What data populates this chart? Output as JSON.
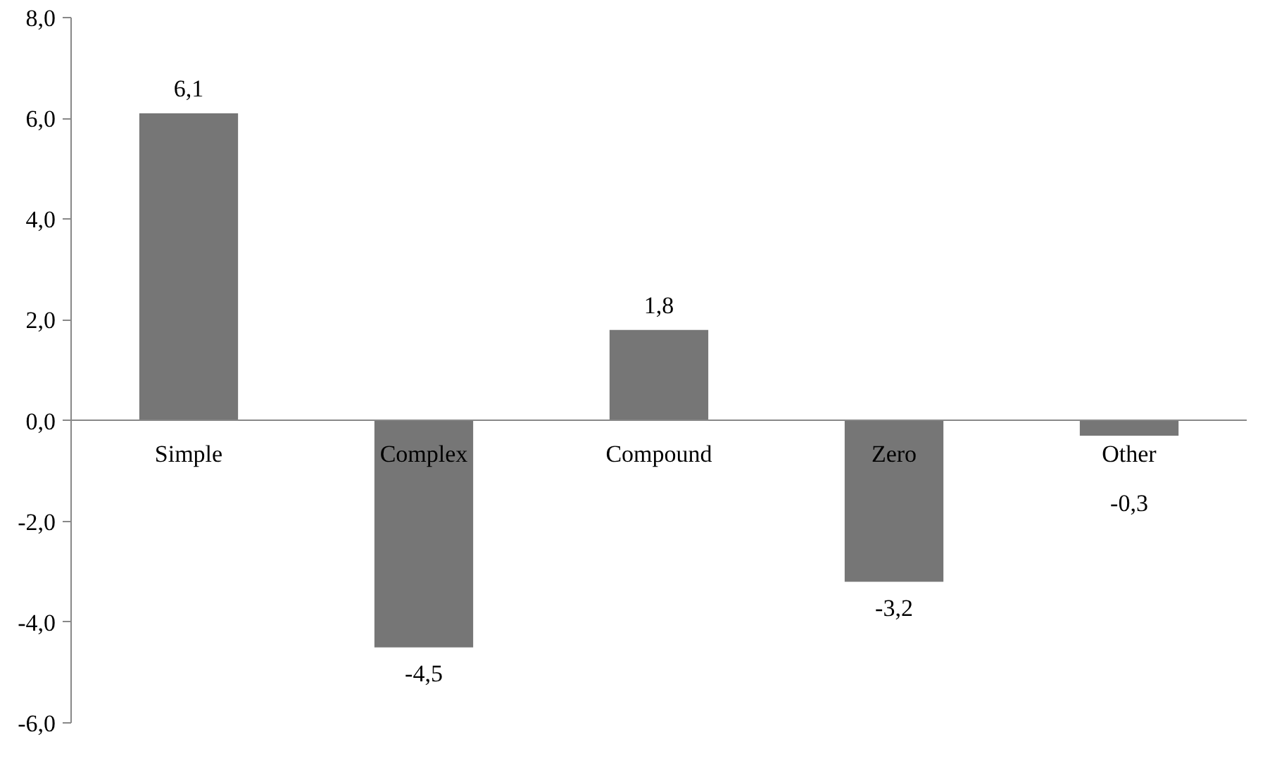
{
  "chart_data": {
    "type": "bar",
    "categories": [
      "Simple",
      "Complex",
      "Compound",
      "Zero",
      "Other"
    ],
    "values": [
      6.1,
      -4.5,
      1.8,
      -3.2,
      -0.3
    ],
    "value_labels": [
      "6,1",
      "-4,5",
      "1,8",
      "-3,2",
      "-0,3"
    ],
    "color": "#767676",
    "ylim": [
      -6,
      8
    ],
    "yticks": [
      {
        "value": -6,
        "label": "-6,0"
      },
      {
        "value": -4,
        "label": "-4,0"
      },
      {
        "value": -2,
        "label": "-2,0"
      },
      {
        "value": 0,
        "label": "0,0"
      },
      {
        "value": 2,
        "label": "2,0"
      },
      {
        "value": 4,
        "label": "4,0"
      },
      {
        "value": 6,
        "label": "6,0"
      },
      {
        "value": 8,
        "label": "8,0"
      }
    ],
    "grid": false
  }
}
